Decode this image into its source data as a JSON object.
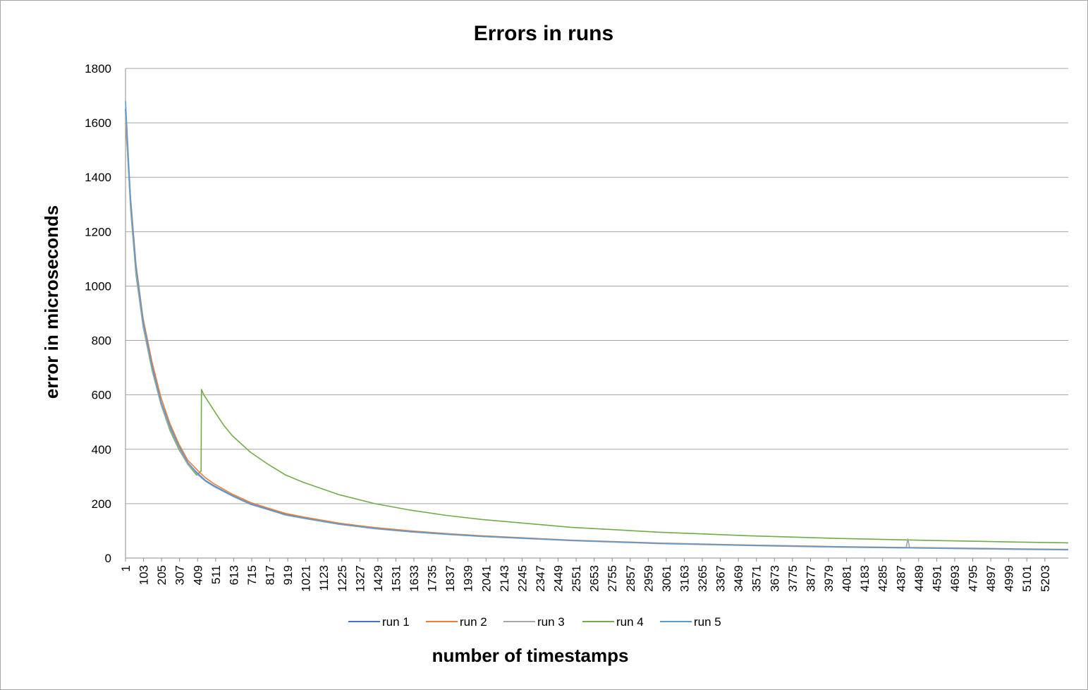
{
  "chart_data": {
    "type": "line",
    "title": "Errors in runs",
    "xlabel": "number of timestamps",
    "ylabel": "error in microseconds",
    "ylim": [
      0,
      1800
    ],
    "yticks": [
      0,
      200,
      400,
      600,
      800,
      1000,
      1200,
      1400,
      1600,
      1800
    ],
    "xlim": [
      1,
      5290
    ],
    "xtick_labels": [
      "1",
      "103",
      "205",
      "307",
      "409",
      "511",
      "613",
      "715",
      "817",
      "919",
      "1021",
      "1123",
      "1225",
      "1327",
      "1429",
      "1531",
      "1633",
      "1735",
      "1837",
      "1939",
      "2041",
      "2143",
      "2245",
      "2347",
      "2449",
      "2551",
      "2653",
      "2755",
      "2857",
      "2959",
      "3061",
      "3163",
      "3265",
      "3367",
      "3469",
      "3571",
      "3673",
      "3775",
      "3877",
      "3979",
      "4081",
      "4183",
      "4285",
      "4387",
      "4489",
      "4591",
      "4693",
      "4795",
      "4897",
      "4999",
      "5101",
      "5203"
    ],
    "grid": true,
    "legend_position": "bottom",
    "series": [
      {
        "name": "run 1",
        "color": "#4472c4",
        "x": [
          1,
          30,
          60,
          100,
          150,
          200,
          250,
          300,
          350,
          409,
          450,
          500,
          600,
          700,
          800,
          900,
          1000,
          1200,
          1400,
          1600,
          1800,
          2000,
          2500,
          3000,
          3500,
          4000,
          4500,
          5000,
          5290
        ],
        "y": [
          1650,
          1300,
          1060,
          860,
          700,
          570,
          480,
          410,
          350,
          310,
          285,
          265,
          230,
          200,
          180,
          160,
          148,
          126,
          110,
          98,
          88,
          80,
          65,
          54,
          47,
          41,
          37,
          33,
          31
        ]
      },
      {
        "name": "run 2",
        "color": "#ed7d31",
        "x": [
          1,
          30,
          60,
          100,
          150,
          200,
          250,
          300,
          350,
          409,
          450,
          500,
          600,
          700,
          800,
          900,
          1000,
          1200,
          1400,
          1600,
          1800,
          2000,
          2500,
          3000,
          3500,
          4000,
          4500,
          5000,
          5290
        ],
        "y": [
          1600,
          1320,
          1080,
          880,
          720,
          590,
          495,
          420,
          360,
          320,
          295,
          272,
          235,
          205,
          184,
          164,
          151,
          128,
          112,
          100,
          90,
          82,
          66,
          55,
          48,
          42,
          38,
          34,
          32
        ]
      },
      {
        "name": "run 3",
        "color": "#a5a5a5",
        "x": [
          1,
          30,
          60,
          100,
          150,
          200,
          250,
          300,
          350,
          409,
          450,
          500,
          600,
          700,
          800,
          900,
          1000,
          1200,
          1400,
          1600,
          1800,
          2000,
          2500,
          3000,
          3500,
          4000,
          4380,
          4390,
          4400,
          4500,
          5000,
          5290
        ],
        "y": [
          1630,
          1290,
          1050,
          850,
          695,
          565,
          475,
          405,
          345,
          305,
          282,
          262,
          228,
          198,
          178,
          158,
          146,
          124,
          108,
          96,
          87,
          79,
          64,
          53,
          46,
          40,
          37,
          70,
          37,
          36,
          32,
          30
        ]
      },
      {
        "name": "run 4",
        "color": "#70ad47",
        "x": [
          1,
          30,
          60,
          100,
          150,
          200,
          250,
          300,
          350,
          400,
          425,
          427,
          440,
          470,
          500,
          550,
          600,
          700,
          800,
          900,
          1000,
          1200,
          1400,
          1600,
          1800,
          2000,
          2500,
          3000,
          3500,
          4000,
          4500,
          5000,
          5290
        ],
        "y": [
          1620,
          1280,
          1040,
          850,
          690,
          565,
          470,
          400,
          345,
          305,
          320,
          620,
          600,
          570,
          540,
          490,
          450,
          390,
          345,
          305,
          278,
          233,
          200,
          176,
          157,
          142,
          113,
          95,
          82,
          72,
          65,
          59,
          56
        ]
      },
      {
        "name": "run 5",
        "color": "#5b9bd5",
        "x": [
          1,
          30,
          60,
          100,
          150,
          200,
          250,
          300,
          350,
          409,
          450,
          500,
          600,
          700,
          800,
          900,
          1000,
          1200,
          1400,
          1600,
          1800,
          2000,
          2500,
          3000,
          3500,
          4000,
          4500,
          5000,
          5290
        ],
        "y": [
          1680,
          1310,
          1070,
          870,
          705,
          575,
          485,
          412,
          352,
          308,
          284,
          263,
          229,
          199,
          179,
          159,
          147,
          125,
          109,
          97,
          88,
          80,
          65,
          54,
          47,
          41,
          37,
          33,
          31
        ]
      }
    ]
  }
}
